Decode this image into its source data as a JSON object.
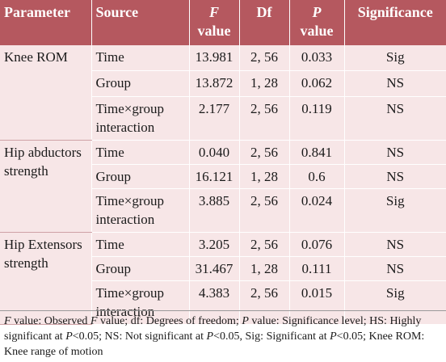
{
  "table": {
    "headers": {
      "parameter": "Parameter",
      "source": "Source",
      "f_value_letter": "F",
      "f_value_word": "value",
      "df": "Df",
      "p_value_letter": "P",
      "p_value_word": "value",
      "significance": "Significance"
    },
    "groups": [
      {
        "parameter": "Knee ROM",
        "rows": [
          {
            "source": "Time",
            "f": "13.981",
            "df": "2, 56",
            "p": "0.033",
            "sig": "Sig"
          },
          {
            "source": "Group",
            "f": "13.872",
            "df": "1, 28",
            "p": "0.062",
            "sig": "NS"
          },
          {
            "source": "Time×group interaction",
            "f": "2.177",
            "df": "2, 56",
            "p": "0.119",
            "sig": "NS"
          }
        ]
      },
      {
        "parameter": "Hip abductors strength",
        "rows": [
          {
            "source": "Time",
            "f": "0.040",
            "df": "2, 56",
            "p": "0.841",
            "sig": "NS"
          },
          {
            "source": "Group",
            "f": "16.121",
            "df": "1, 28",
            "p": "0.6",
            "sig": "NS"
          },
          {
            "source": "Time×group interaction",
            "f": "3.885",
            "df": "2, 56",
            "p": "0.024",
            "sig": "Sig"
          }
        ]
      },
      {
        "parameter": "Hip Extensors strength",
        "rows": [
          {
            "source": "Time",
            "f": "3.205",
            "df": "2, 56",
            "p": "0.076",
            "sig": "NS"
          },
          {
            "source": "Group",
            "f": "31.467",
            "df": "1, 28",
            "p": "0.111",
            "sig": "NS"
          },
          {
            "source": "Time×group interaction",
            "f": "4.383",
            "df": "2, 56",
            "p": "0.015",
            "sig": "Sig"
          }
        ]
      }
    ]
  },
  "footnote": {
    "f_letter": "F",
    "p1": " value: Observed ",
    "f_letter_2": "F",
    "p2": " value; df: Degrees of freedom; ",
    "p_letter": "P",
    "p3": " value: Significance level; HS: Highly significant at ",
    "p_letter_2": "P",
    "p4": "<0.05; NS: Not significant at ",
    "p_letter_3": "P",
    "p5": "<0.05, Sig: Significant at ",
    "p_letter_4": "P",
    "p6": "<0.05; Knee ROM: Knee range of motion"
  },
  "colors": {
    "header_bg": "#b5585f",
    "body_bg": "#f7e6e7",
    "header_text": "#ffffff"
  }
}
